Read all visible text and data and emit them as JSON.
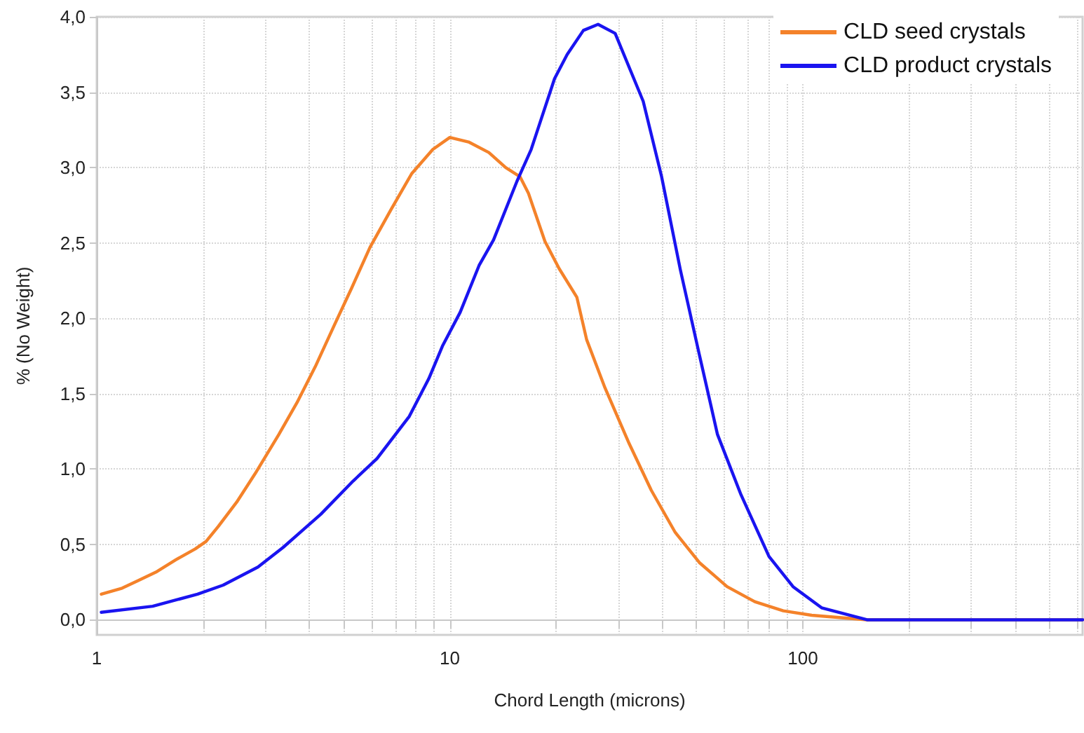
{
  "chart_data": {
    "type": "line",
    "xlabel": "Chord Length (microns)",
    "ylabel": "% (No Weight)",
    "xlim": [
      1,
      620
    ],
    "ylim": [
      -0.1,
      4.0
    ],
    "log": "x",
    "grid": true,
    "legend": "top right",
    "marker": "none",
    "line_style": "solid",
    "xticks": [
      1,
      {
        "value": 2,
        "label": null
      },
      {
        "value": 3,
        "label": null
      },
      {
        "value": 4,
        "label": null
      },
      {
        "value": 5,
        "label": null
      },
      {
        "value": 6,
        "label": null
      },
      {
        "value": 7,
        "label": null
      },
      {
        "value": 8,
        "label": null
      },
      {
        "value": 9,
        "label": null
      },
      10,
      {
        "value": 20,
        "label": null
      },
      {
        "value": 30,
        "label": null
      },
      {
        "value": 40,
        "label": null
      },
      {
        "value": 50,
        "label": null
      },
      {
        "value": 60,
        "label": null
      },
      {
        "value": 70,
        "label": null
      },
      {
        "value": 80,
        "label": null
      },
      {
        "value": 90,
        "label": null
      },
      100,
      {
        "value": 200,
        "label": null
      },
      {
        "value": 300,
        "label": null
      },
      {
        "value": 400,
        "label": null
      },
      {
        "value": 500,
        "label": null
      },
      {
        "value": 600,
        "label": null
      }
    ],
    "yticks": [
      {
        "value": 0,
        "label": "0,0"
      },
      {
        "value": 0.5,
        "label": "0,5"
      },
      {
        "value": 1,
        "label": "1,0"
      },
      {
        "value": 1.5,
        "label": "1,5"
      },
      {
        "value": 2,
        "label": "2,0"
      },
      {
        "value": 2.5,
        "label": "2,5"
      },
      {
        "value": 3,
        "label": "3,0"
      },
      {
        "value": 3.5,
        "label": "3,5"
      },
      {
        "value": 4,
        "label": "4,0"
      }
    ],
    "series": [
      {
        "name": "CLD seed crystals",
        "color": "#f4822a",
        "x": [
          1.03,
          1.18,
          1.31,
          1.48,
          1.68,
          1.9,
          2.04,
          2.21,
          2.49,
          2.81,
          3.28,
          3.69,
          4.16,
          4.72,
          5.27,
          5.94,
          6.81,
          7.8,
          8.95,
          10,
          11.3,
          12.9,
          14.4,
          15.8,
          16.7,
          18.6,
          20.4,
          22.9,
          24.4,
          27.5,
          32.2,
          37.2,
          43.5,
          50.9,
          61,
          73.1,
          88,
          106,
          152,
          620
        ],
        "values": [
          0.17,
          0.21,
          0.26,
          0.32,
          0.4,
          0.47,
          0.52,
          0.62,
          0.78,
          0.97,
          1.23,
          1.44,
          1.68,
          1.96,
          2.2,
          2.47,
          2.72,
          2.96,
          3.12,
          3.2,
          3.17,
          3.1,
          3.0,
          2.94,
          2.83,
          2.51,
          2.33,
          2.14,
          1.86,
          1.54,
          1.17,
          0.86,
          0.58,
          0.38,
          0.22,
          0.12,
          0.06,
          0.03,
          0,
          0
        ]
      },
      {
        "name": "CLD product crystals",
        "color": "#1a14f0",
        "x": [
          1.03,
          1.44,
          1.93,
          2.28,
          2.86,
          3.37,
          4.31,
          5.32,
          6.22,
          7.68,
          8.72,
          9.55,
          10.7,
          12.1,
          13.3,
          15.5,
          17.0,
          19.8,
          21.5,
          23.9,
          26.3,
          29.4,
          35.3,
          39.8,
          45,
          50.9,
          57.3,
          66.8,
          80.2,
          93.8,
          113,
          152,
          620
        ],
        "values": [
          0.05,
          0.09,
          0.17,
          0.23,
          0.35,
          0.48,
          0.7,
          0.92,
          1.07,
          1.35,
          1.6,
          1.82,
          2.04,
          2.35,
          2.52,
          2.91,
          3.12,
          3.59,
          3.75,
          3.91,
          3.95,
          3.89,
          3.44,
          2.94,
          2.32,
          1.76,
          1.23,
          0.83,
          0.42,
          0.22,
          0.08,
          0,
          0
        ]
      }
    ]
  }
}
